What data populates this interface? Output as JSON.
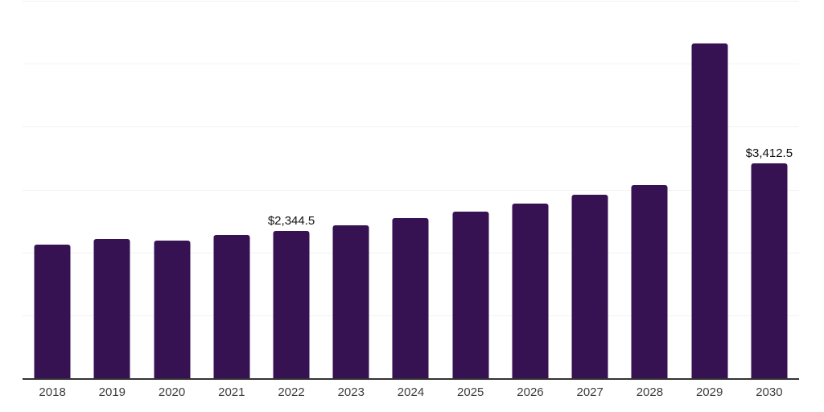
{
  "chart_data": {
    "type": "bar",
    "title": "",
    "xlabel": "",
    "ylabel": "",
    "categories": [
      "2018",
      "2019",
      "2020",
      "2021",
      "2022",
      "2023",
      "2024",
      "2025",
      "2026",
      "2027",
      "2028",
      "2029",
      "2030"
    ],
    "values": [
      2120,
      2210,
      2190,
      2275,
      2344.5,
      2430,
      2545,
      2650,
      2770,
      2915,
      3065,
      5325,
      3412.5
    ],
    "data_labels": [
      "",
      "",
      "",
      "",
      "$2,344.5",
      "",
      "",
      "",
      "",
      "",
      "",
      "",
      "$3,412.5"
    ],
    "ylim": [
      0,
      6000
    ],
    "gridline_interval": 1000,
    "grid": "horizontal-only",
    "legend": "none",
    "y_axis_tick_labels_visible": false,
    "colors": {
      "bar": "#371253",
      "gridline": "#f2f2f2",
      "axis_line": "#333333",
      "value_label_text": "#111111",
      "tick_label_text": "#3d3d3d",
      "background": "#ffffff"
    }
  }
}
